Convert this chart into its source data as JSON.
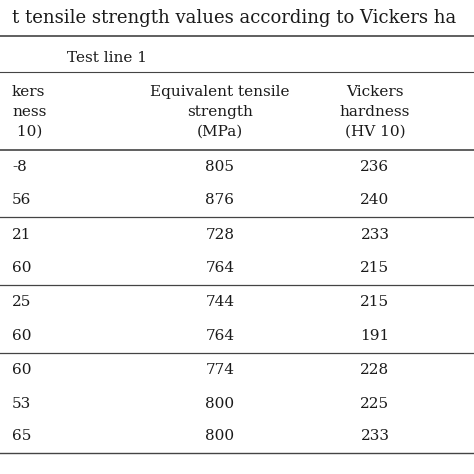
{
  "title": "t tensile strength values according to Vickers ha",
  "section_label": "Test line 1",
  "col1_header_lines": [
    "kers",
    "ness",
    " 10)"
  ],
  "col2_header_lines": [
    "Equivalent tensile",
    "strength",
    "(MPa)"
  ],
  "col3_header_lines": [
    "Vickers",
    "hardness",
    "(HV 10)"
  ],
  "col1_partial": [
    "-8",
    "56",
    "21",
    "60",
    "25",
    "60",
    "60",
    "53",
    "65"
  ],
  "col2_values": [
    "805",
    "876",
    "728",
    "764",
    "744",
    "764",
    "774",
    "800",
    "800"
  ],
  "col3_values": [
    "236",
    "240",
    "233",
    "215",
    "215",
    "191",
    "228",
    "225",
    "233"
  ],
  "group_sep_after": [
    1,
    3,
    5
  ],
  "bg_color": "#ffffff",
  "text_color": "#1a1a1a",
  "line_color": "#444444",
  "title_fontsize": 13,
  "header_fontsize": 11,
  "data_fontsize": 11
}
